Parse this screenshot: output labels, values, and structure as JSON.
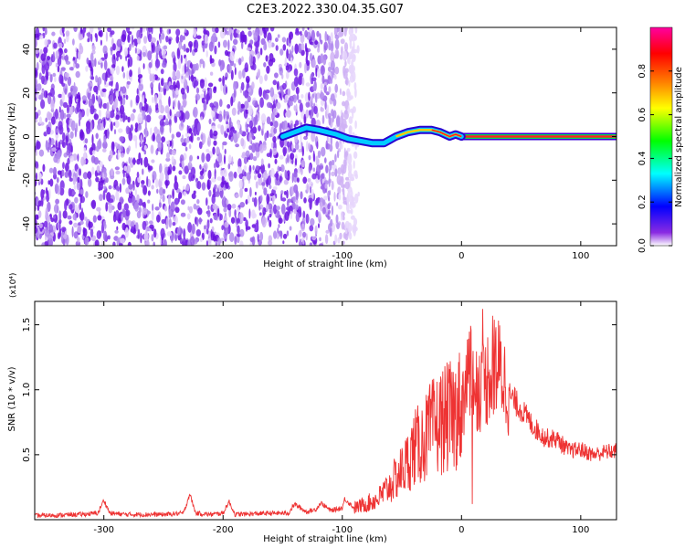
{
  "title": "C2E3.2022.330.04.35.G07",
  "chart_data": [
    {
      "type": "heatmap",
      "title": "C2E3.2022.330.04.35.G07",
      "xlabel": "Height of straight line (km)",
      "ylabel": "Frequency (Hz)",
      "xlim": [
        -358,
        130
      ],
      "ylim": [
        -50,
        50
      ],
      "x_ticks": [
        -300,
        -200,
        -100,
        0,
        100
      ],
      "y_ticks": [
        -40,
        -20,
        0,
        20,
        40
      ],
      "noise_region_x": [
        -358,
        -88
      ],
      "signal_track": [
        {
          "x": -150,
          "y": 0
        },
        {
          "x": -140,
          "y": 2
        },
        {
          "x": -130,
          "y": 4
        },
        {
          "x": -120,
          "y": 3
        },
        {
          "x": -105,
          "y": 1
        },
        {
          "x": -95,
          "y": -1
        },
        {
          "x": -85,
          "y": -2
        },
        {
          "x": -75,
          "y": -3
        },
        {
          "x": -65,
          "y": -3
        },
        {
          "x": -55,
          "y": 0
        },
        {
          "x": -45,
          "y": 2
        },
        {
          "x": -35,
          "y": 3
        },
        {
          "x": -25,
          "y": 3
        },
        {
          "x": -18,
          "y": 2
        },
        {
          "x": -10,
          "y": 0
        },
        {
          "x": -5,
          "y": 1
        },
        {
          "x": 0,
          "y": 0
        },
        {
          "x": 130,
          "y": 0
        }
      ],
      "colorbar": {
        "label": "Normalized spectral amplitude",
        "range": [
          0,
          1
        ],
        "ticks": [
          "0.0",
          "0.2",
          "0.4",
          "0.6",
          "0.8"
        ],
        "colors": [
          "#ffffff",
          "#8a2be2",
          "#0000ff",
          "#00ffff",
          "#00ff00",
          "#ffff00",
          "#ff7f00",
          "#ff0000",
          "#ff00a0"
        ]
      },
      "noise_color": "#7a2ce8",
      "grid": false
    },
    {
      "type": "line",
      "xlabel": "Height of straight line (km)",
      "ylabel": "SNR (10 * v/v)",
      "scale_label": "(x10⁴)",
      "xlim": [
        -358,
        130
      ],
      "ylim": [
        0,
        16800
      ],
      "x_ticks": [
        -300,
        -200,
        -100,
        0,
        100
      ],
      "y_ticks": [
        {
          "value": 5000,
          "label": "0.5"
        },
        {
          "value": 10000,
          "label": "1.0"
        },
        {
          "value": 15000,
          "label": "1.5"
        }
      ],
      "color": "#ee3333",
      "series": [
        {
          "x": [
            -358,
            -320,
            -305,
            -300,
            -295,
            -280,
            -250,
            -233,
            -228,
            -223,
            -210,
            -200,
            -195,
            -190,
            -160,
            -145,
            -140,
            -130,
            -122,
            -118,
            -110,
            -100,
            -98,
            -90,
            -80,
            -70,
            -60,
            -50,
            -45,
            -40,
            -35,
            -30,
            -25,
            -20,
            -15,
            -10,
            -5,
            0,
            5,
            10,
            15,
            20,
            25,
            30,
            35,
            40,
            50,
            60,
            70,
            80,
            90,
            100,
            110,
            120,
            130
          ],
          "y": [
            300,
            400,
            500,
            1500,
            500,
            400,
            400,
            500,
            2000,
            500,
            400,
            500,
            1400,
            400,
            500,
            500,
            1200,
            600,
            800,
            1300,
            700,
            900,
            1600,
            900,
            1200,
            1600,
            2600,
            3800,
            4500,
            5500,
            5800,
            6300,
            7000,
            7300,
            7700,
            7900,
            8200,
            8800,
            11000,
            10800,
            10200,
            10500,
            12000,
            11800,
            11000,
            9600,
            8500,
            7200,
            6300,
            6200,
            5300,
            5400,
            5000,
            5200,
            5300
          ]
        }
      ],
      "grid": false
    }
  ]
}
